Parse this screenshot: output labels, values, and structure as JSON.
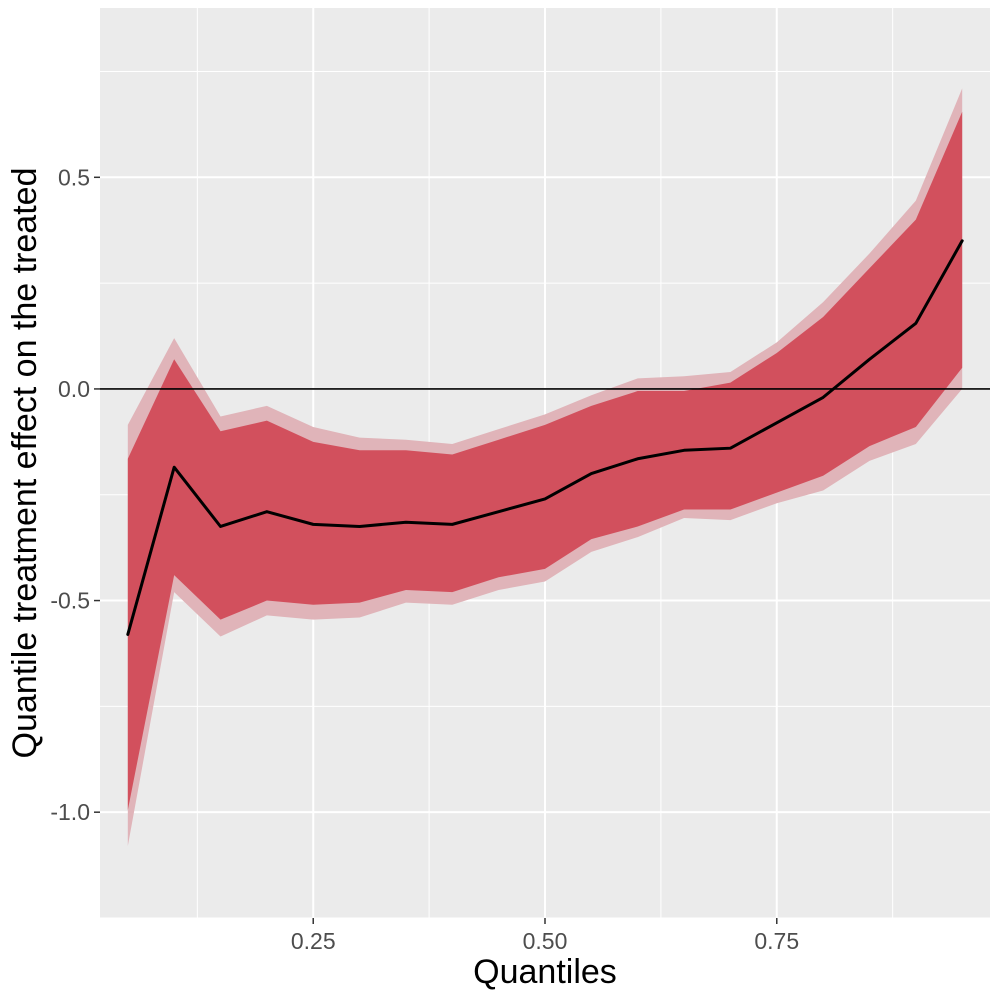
{
  "chart_data": {
    "type": "line",
    "xlabel": "Quantiles",
    "ylabel": "Quantile treatment effect on the treated",
    "xlim": [
      0.02,
      0.98
    ],
    "ylim": [
      -1.25,
      0.9
    ],
    "x_ticks": [
      0.25,
      0.5,
      0.75
    ],
    "x_tick_labels": [
      "0.25",
      "0.50",
      "0.75"
    ],
    "y_ticks": [
      -1.0,
      -0.5,
      0.0,
      0.5
    ],
    "y_tick_labels": [
      "-1.0",
      "-0.5",
      "0.0",
      "0.5"
    ],
    "reference_line_y": 0.0,
    "grid": true,
    "colors": {
      "panel": "#ebebeb",
      "grid": "#ffffff",
      "inner_band": "#d2505d",
      "outer_band": "#e0b4b9",
      "line": "#000000"
    },
    "x": [
      0.05,
      0.1,
      0.15,
      0.2,
      0.25,
      0.3,
      0.35,
      0.4,
      0.45,
      0.5,
      0.55,
      0.6,
      0.65,
      0.7,
      0.75,
      0.8,
      0.85,
      0.9,
      0.95
    ],
    "series": [
      {
        "values": [
          -0.58,
          -0.185,
          -0.325,
          -0.29,
          -0.32,
          -0.325,
          -0.315,
          -0.32,
          -0.29,
          -0.26,
          -0.2,
          -0.165,
          -0.145,
          -0.14,
          -0.08,
          -0.02,
          0.07,
          0.155,
          0.35
        ]
      }
    ],
    "bands": [
      {
        "level": "outer",
        "lower": [
          -1.08,
          -0.48,
          -0.585,
          -0.535,
          -0.545,
          -0.54,
          -0.505,
          -0.51,
          -0.475,
          -0.455,
          -0.385,
          -0.35,
          -0.305,
          -0.31,
          -0.27,
          -0.24,
          -0.17,
          -0.13,
          0.0
        ],
        "upper": [
          -0.085,
          0.12,
          -0.065,
          -0.04,
          -0.09,
          -0.115,
          -0.12,
          -0.13,
          -0.095,
          -0.06,
          -0.015,
          0.025,
          0.03,
          0.04,
          0.11,
          0.205,
          0.32,
          0.445,
          0.71
        ]
      },
      {
        "level": "inner",
        "lower": [
          -0.995,
          -0.44,
          -0.545,
          -0.5,
          -0.51,
          -0.505,
          -0.475,
          -0.48,
          -0.445,
          -0.425,
          -0.355,
          -0.325,
          -0.285,
          -0.285,
          -0.245,
          -0.205,
          -0.135,
          -0.09,
          0.05
        ],
        "upper": [
          -0.165,
          0.07,
          -0.1,
          -0.075,
          -0.125,
          -0.145,
          -0.145,
          -0.155,
          -0.12,
          -0.085,
          -0.04,
          -0.005,
          -0.005,
          0.015,
          0.085,
          0.17,
          0.285,
          0.4,
          0.655
        ]
      }
    ]
  }
}
